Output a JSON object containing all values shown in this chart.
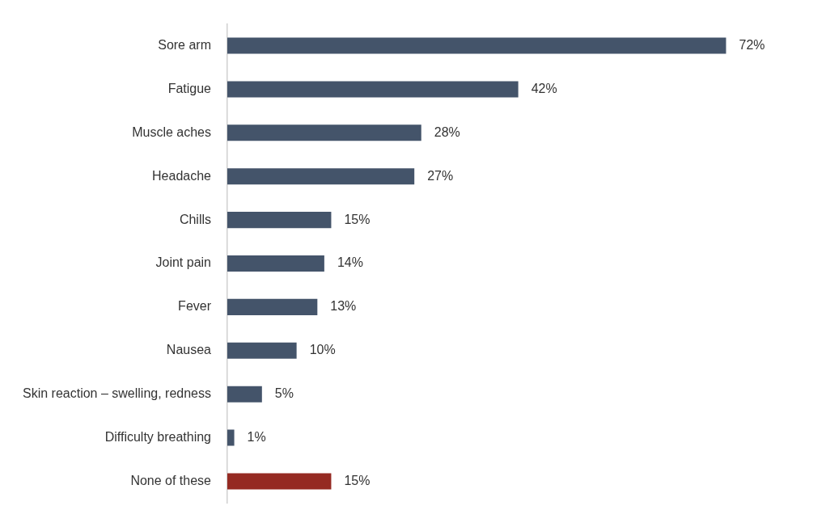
{
  "chart_data": {
    "type": "bar",
    "orientation": "horizontal",
    "categories": [
      "Sore arm",
      "Fatigue",
      "Muscle aches",
      "Headache",
      "Chills",
      "Joint pain",
      "Fever",
      "Nausea",
      "Skin reaction – swelling, redness",
      "Difficulty breathing",
      "None of these"
    ],
    "values": [
      72,
      42,
      28,
      27,
      15,
      14,
      13,
      10,
      5,
      1,
      15
    ],
    "colors": [
      "#44546a",
      "#44546a",
      "#44546a",
      "#44546a",
      "#44546a",
      "#44546a",
      "#44546a",
      "#44546a",
      "#44546a",
      "#44546a",
      "#952a22"
    ],
    "value_labels": [
      "72%",
      "42%",
      "28%",
      "27%",
      "15%",
      "14%",
      "13%",
      "10%",
      "5%",
      "1%",
      "15%"
    ],
    "legend": false
  }
}
